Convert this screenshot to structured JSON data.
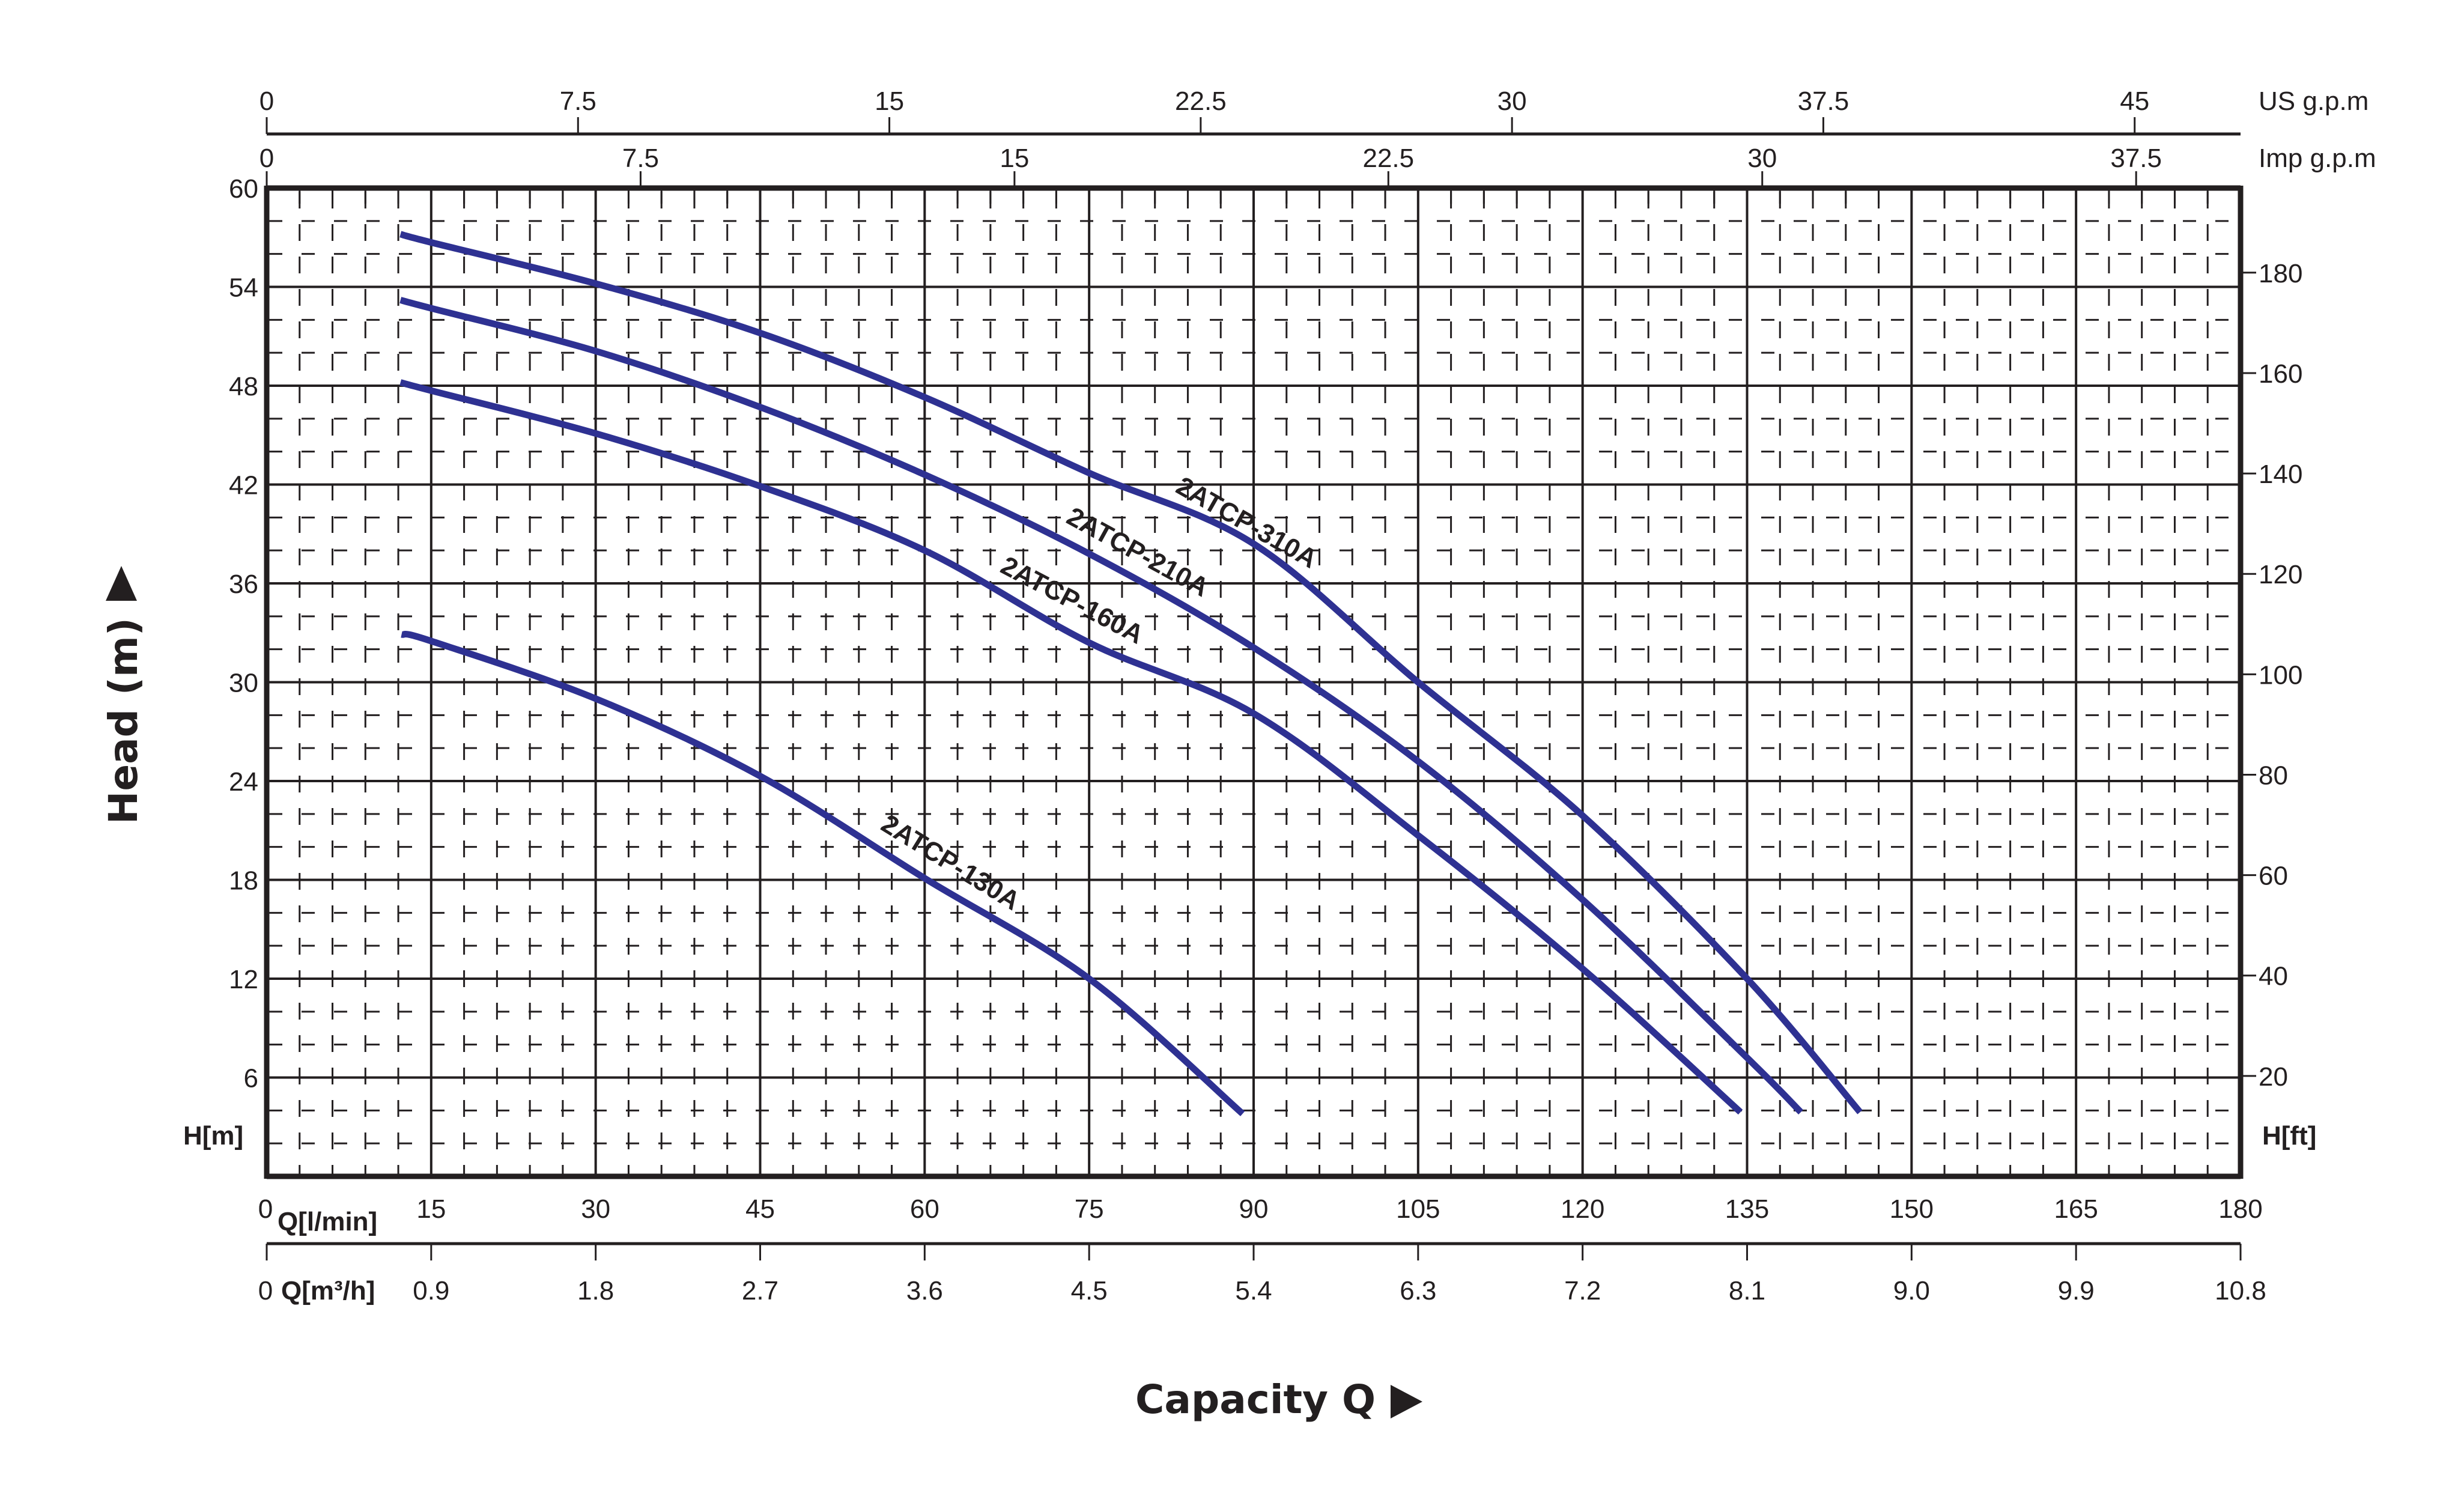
{
  "chart_data": {
    "type": "line",
    "title": "",
    "xlabel": "Capacity Q",
    "ylabel": "Head (m)",
    "xlim": [
      0,
      180
    ],
    "ylim": [
      0,
      60
    ],
    "grid": true,
    "legend_position": "inline labels on curves",
    "x_unit": "Q[l/min]",
    "y_unit": "H[m]",
    "series": [
      {
        "name": "2ATCP-310A",
        "x": [
          12.2,
          15,
          30,
          45,
          60,
          75,
          90,
          105,
          120,
          135,
          145.3
        ],
        "y": [
          57.2,
          56.7,
          54.2,
          51.2,
          47.3,
          42.7,
          38.4,
          30.0,
          21.9,
          12.0,
          3.9
        ]
      },
      {
        "name": "2ATCP-210A",
        "x": [
          12.2,
          15,
          30,
          45,
          60,
          75,
          90,
          105,
          120,
          135,
          139.9
        ],
        "y": [
          53.2,
          52.7,
          50.1,
          46.7,
          42.6,
          37.8,
          32.1,
          25.2,
          16.8,
          7.2,
          3.9
        ]
      },
      {
        "name": "2ATCP-160A",
        "x": [
          12.2,
          15,
          30,
          45,
          60,
          75,
          90,
          105,
          120,
          134.4
        ],
        "y": [
          48.2,
          47.7,
          45.1,
          41.9,
          38.0,
          32.4,
          28.1,
          20.7,
          12.6,
          3.9
        ]
      },
      {
        "name": "2ATCP-130A",
        "x": [
          12.3,
          15,
          30,
          45,
          60,
          75,
          89.0
        ],
        "y": [
          32.9,
          32.5,
          29.0,
          24.3,
          18.1,
          12.0,
          3.8
        ]
      }
    ],
    "axes": {
      "left_head_m": {
        "label": "H[m]",
        "ticks": [
          6,
          12,
          18,
          24,
          30,
          36,
          42,
          48,
          54,
          60
        ]
      },
      "right_head_ft": {
        "label": "H[ft]",
        "ticks": [
          20,
          40,
          60,
          80,
          100,
          120,
          140,
          160,
          180
        ]
      },
      "bottom_l_min": {
        "label": "Q[l/min]",
        "ticks": [
          0,
          15,
          30,
          45,
          60,
          75,
          90,
          105,
          120,
          135,
          150,
          165,
          180
        ]
      },
      "bottom_m3_h": {
        "label": "Q[m³/h]",
        "ticks": [
          "0",
          "0.9",
          "1.8",
          "2.7",
          "3.6",
          "4.5",
          "5.4",
          "6.3",
          "7.2",
          "8.1",
          "9.0",
          "9.9",
          "10.8"
        ]
      },
      "top_us_gpm": {
        "label": "US g.p.m",
        "ticks": [
          "0",
          "7.5",
          "15",
          "22.5",
          "30",
          "37.5",
          "45"
        ]
      },
      "top_imp_gpm": {
        "label": "Imp g.p.m",
        "ticks": [
          "0",
          "7.5",
          "15",
          "22.5",
          "30",
          "37.5"
        ]
      }
    }
  },
  "labels": {
    "y_title": "Head (m)",
    "x_title": "Capacity Q",
    "y_arrow": "▲",
    "x_arrow": "▶",
    "h_m": "H[m]",
    "h_ft": "H[ft]",
    "q_lmin": "Q[l/min]",
    "q_m3h": "Q[m³/h]",
    "us_gpm": "US g.p.m",
    "imp_gpm": "Imp g.p.m"
  },
  "style": {
    "curve_color": "#2e3192",
    "ink_color": "#231f20",
    "background": "#ffffff"
  }
}
